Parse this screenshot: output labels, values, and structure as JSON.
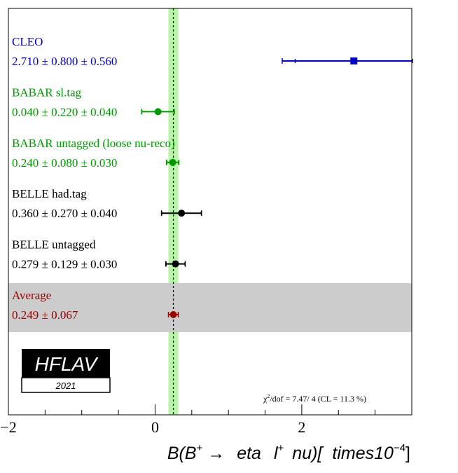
{
  "chart_data": {
    "type": "scatter",
    "chart_kind": "forest-plot",
    "xlim": [
      -2,
      3.5
    ],
    "x_ticks": [
      -2,
      0,
      2
    ],
    "x_tick_labels": [
      "−2",
      "0",
      "2"
    ],
    "xlabel": {
      "prefix": "B(B",
      "sup1": "+",
      "arrow": " → ",
      "eta": "eta",
      "l": "l",
      "sup2": "+",
      "nu": "nu)[",
      "times": "times10",
      "sup3": "−4",
      "close": "]"
    },
    "average_band": {
      "center": 0.249,
      "error": 0.067,
      "color": "#b9f5a6"
    },
    "measurements": [
      {
        "name": "CLEO",
        "value_text": "2.710 ± 0.800 ± 0.560",
        "x": 2.71,
        "stat": 0.8,
        "syst": 0.56,
        "color": "#0000c0",
        "marker": "square"
      },
      {
        "name": "BABAR sl.tag",
        "value_text": "0.040 ± 0.220 ± 0.040",
        "x": 0.04,
        "stat": 0.22,
        "syst": 0.04,
        "color": "#009900",
        "marker": "circle"
      },
      {
        "name": "BABAR untagged (loose nu-reco)",
        "value_text": "0.240 ± 0.080 ± 0.030",
        "x": 0.24,
        "stat": 0.08,
        "syst": 0.03,
        "color": "#009900",
        "marker": "circle"
      },
      {
        "name": "BELLE had.tag",
        "value_text": "0.360 ± 0.270 ± 0.040",
        "x": 0.36,
        "stat": 0.27,
        "syst": 0.04,
        "color": "#000000",
        "marker": "circle"
      },
      {
        "name": "BELLE untagged",
        "value_text": "0.279 ± 0.129 ± 0.030",
        "x": 0.279,
        "stat": 0.129,
        "syst": 0.03,
        "color": "#000000",
        "marker": "circle"
      },
      {
        "name": "Average",
        "value_text": "0.249 ± 0.067",
        "x": 0.249,
        "stat": 0.067,
        "syst": 0,
        "color": "#990000",
        "marker": "circle",
        "is_average": true
      }
    ],
    "chi2_text": {
      "chi": "χ",
      "sup": "2",
      "rest": "/dof = 7.47/ 4 (CL = 11.3 %)"
    },
    "logo": {
      "name": "HFLAV",
      "year": "2021"
    }
  }
}
